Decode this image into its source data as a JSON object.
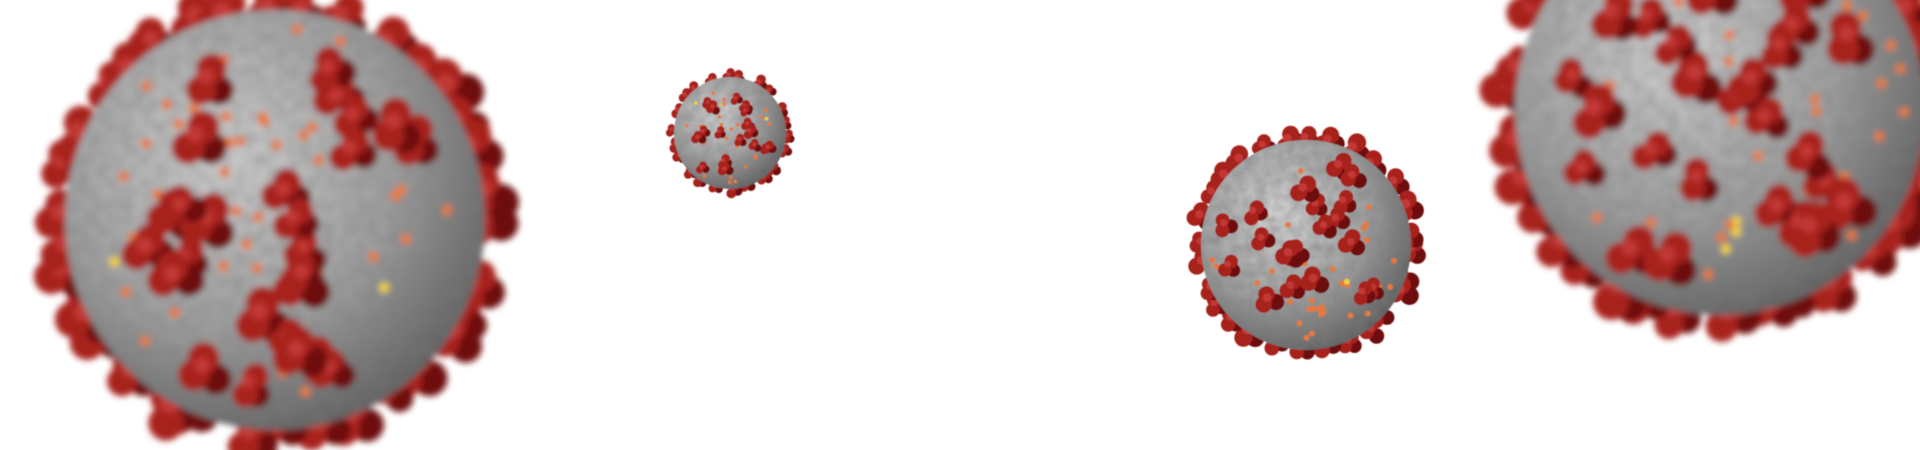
{
  "scene": {
    "background_color": "#ffffff",
    "subject": "coronavirus-particles",
    "colors": {
      "body_light": "#d2d2d2",
      "body_mid": "#9d9d9d",
      "body_dark": "#5d5d5d",
      "spike": "#a8201f",
      "spike_dark": "#6e0f10",
      "protein_orange": "#e8783a",
      "protein_yellow": "#f2d233"
    },
    "particles": [
      {
        "name": "virus-particle-large-left",
        "focus": "blurred"
      },
      {
        "name": "virus-particle-small-center",
        "focus": "sharp"
      },
      {
        "name": "virus-particle-medium-right",
        "focus": "sharp"
      },
      {
        "name": "virus-particle-large-right-edge",
        "focus": "blurred"
      }
    ]
  }
}
